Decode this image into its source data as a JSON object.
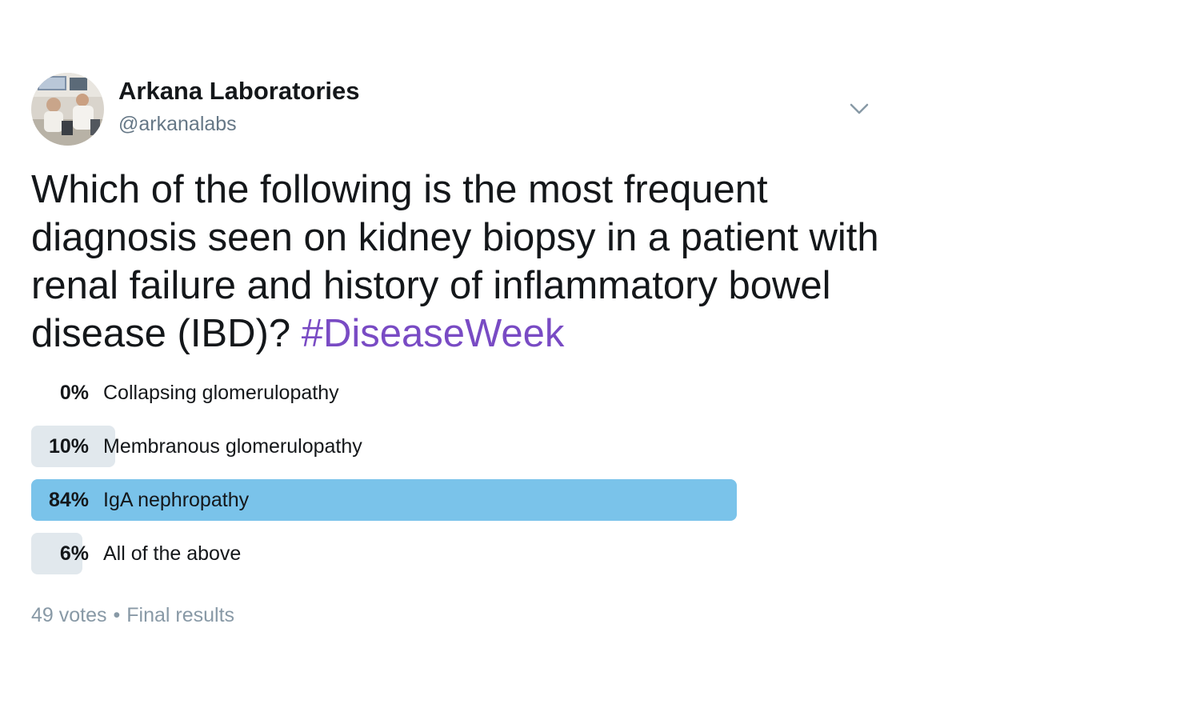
{
  "author": {
    "name": "Arkana Laboratories",
    "handle": "@arkanalabs",
    "avatar_icon": "lab-photo-avatar"
  },
  "menu": {
    "icon": "chevron-down-icon"
  },
  "tweet": {
    "text": "Which of the following is the most frequent diagnosis seen on kidney biopsy in a patient with renal failure and history of inflammatory bowel disease (IBD)? ",
    "hashtag": "#DiseaseWeek",
    "hashtag_color": "#794bc4"
  },
  "poll": {
    "options": [
      {
        "percent_label": "0%",
        "percent": 0,
        "label": "Collapsing glomerulopathy",
        "winner": false
      },
      {
        "percent_label": "10%",
        "percent": 10,
        "label": "Membranous glomerulopathy",
        "winner": false
      },
      {
        "percent_label": "84%",
        "percent": 84,
        "label": "IgA nephropathy",
        "winner": true
      },
      {
        "percent_label": "6%",
        "percent": 6,
        "label": "All of the above",
        "winner": false
      }
    ],
    "votes": "49 votes",
    "separator": "•",
    "status": "Final results",
    "bar_color": "#e1e8ed",
    "winner_color": "#7ac3ea"
  }
}
